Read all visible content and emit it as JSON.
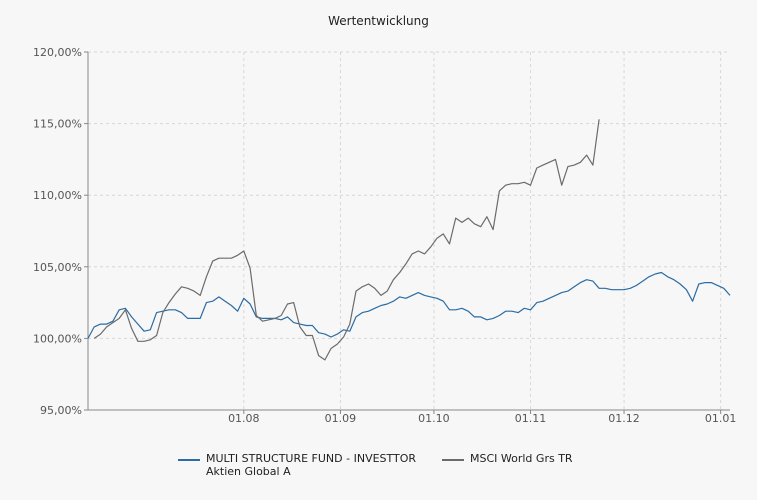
{
  "chart_data": {
    "type": "line",
    "title": "Wertentwicklung",
    "xlabel": "",
    "ylabel": "",
    "y_tick_labels": [
      "95,00%",
      "100,00%",
      "105,00%",
      "110,00%",
      "115,00%",
      "120,00%"
    ],
    "y_ticks": [
      95,
      100,
      105,
      110,
      115,
      120
    ],
    "ylim": [
      95,
      120
    ],
    "x_tick_labels": [
      "01.08",
      "01.09",
      "01.10",
      "01.11",
      "01.12",
      "01.01"
    ],
    "x_ticks": [
      31,
      62,
      92,
      123,
      153,
      184
    ],
    "xlim": [
      -19,
      187
    ],
    "grid": true,
    "legend_position": "bottom",
    "series": [
      {
        "name": "MULTI STRUCTURE FUND - INVESTTOR Aktien Global A",
        "color": "#2b6ca3",
        "x": [
          -19,
          -17,
          -15,
          -13,
          -11,
          -9,
          -7,
          -5,
          -3,
          -1,
          1,
          3,
          5,
          7,
          9,
          11,
          13,
          15,
          17,
          19,
          21,
          23,
          25,
          27,
          29,
          31,
          33,
          35,
          37,
          39,
          41,
          43,
          45,
          47,
          49,
          51,
          53,
          55,
          57,
          59,
          61,
          63,
          65,
          67,
          69,
          71,
          73,
          75,
          77,
          79,
          81,
          83,
          85,
          87,
          89,
          91,
          93,
          95,
          97,
          99,
          101,
          103,
          105,
          107,
          109,
          111,
          113,
          115,
          117,
          119,
          121,
          123,
          125,
          127,
          129,
          131,
          133,
          135,
          137,
          139,
          141,
          143,
          145,
          147,
          149,
          151,
          153,
          155,
          157,
          159,
          161,
          163,
          165,
          167,
          169,
          171,
          173,
          175,
          177,
          179,
          181,
          183,
          185,
          187
        ],
        "y": [
          100.0,
          100.8,
          101.0,
          101.0,
          101.2,
          102.0,
          102.1,
          101.5,
          101.0,
          100.5,
          100.6,
          101.8,
          101.9,
          102.0,
          102.0,
          101.8,
          101.4,
          101.4,
          101.4,
          102.5,
          102.6,
          102.9,
          102.6,
          102.3,
          101.9,
          102.8,
          102.4,
          101.5,
          101.4,
          101.4,
          101.4,
          101.3,
          101.5,
          101.1,
          101.0,
          100.9,
          100.9,
          100.4,
          100.3,
          100.1,
          100.3,
          100.6,
          100.5,
          101.5,
          101.8,
          101.9,
          102.1,
          102.3,
          102.4,
          102.6,
          102.9,
          102.8,
          103.0,
          103.2,
          103.0,
          102.9,
          102.8,
          102.6,
          102.0,
          102.0,
          102.1,
          101.9,
          101.5,
          101.5,
          101.3,
          101.4,
          101.6,
          101.9,
          101.9,
          101.8,
          102.1,
          102.0,
          102.5,
          102.6,
          102.8,
          103.0,
          103.2,
          103.3,
          103.6,
          103.9,
          104.1,
          104.0,
          103.5,
          103.5,
          103.4,
          103.4,
          103.4,
          103.5,
          103.7,
          104.0,
          104.3,
          104.5,
          104.6,
          104.3,
          104.1,
          103.8,
          103.4,
          102.6,
          103.8,
          103.9,
          103.9,
          103.7,
          103.5,
          103.0
        ]
      },
      {
        "name": "MSCI World Grs TR",
        "color": "#6b6b6b",
        "x": [
          -17,
          -15,
          -13,
          -11,
          -9,
          -7,
          -5,
          -3,
          -1,
          1,
          3,
          5,
          7,
          9,
          11,
          13,
          15,
          17,
          19,
          21,
          23,
          25,
          27,
          29,
          31,
          33,
          35,
          37,
          39,
          41,
          43,
          45,
          47,
          49,
          51,
          53,
          55,
          57,
          59,
          61,
          63,
          65,
          67,
          69,
          71,
          73,
          75,
          77,
          79,
          81,
          83,
          85,
          87,
          89,
          91,
          93,
          95,
          97,
          99,
          101,
          103,
          105,
          107,
          109,
          111,
          113,
          115,
          117,
          119,
          121,
          123,
          125,
          127,
          129,
          131,
          133,
          135,
          137,
          139,
          141,
          143,
          145
        ],
        "y": [
          100.0,
          100.3,
          100.8,
          101.1,
          101.4,
          102.0,
          100.7,
          99.8,
          99.8,
          99.9,
          100.2,
          101.8,
          102.5,
          103.1,
          103.6,
          103.5,
          103.3,
          103.0,
          104.3,
          105.4,
          105.6,
          105.6,
          105.6,
          105.8,
          106.1,
          104.9,
          101.6,
          101.2,
          101.3,
          101.4,
          101.6,
          102.4,
          102.5,
          100.8,
          100.2,
          100.2,
          98.8,
          98.5,
          99.3,
          99.6,
          100.1,
          101.0,
          103.3,
          103.6,
          103.8,
          103.5,
          103.0,
          103.3,
          104.1,
          104.6,
          105.2,
          105.9,
          106.1,
          105.9,
          106.4,
          107.0,
          107.3,
          106.6,
          108.4,
          108.1,
          108.4,
          108.0,
          107.8,
          108.5,
          107.6,
          110.3,
          110.7,
          110.8,
          110.8,
          110.9,
          110.7,
          111.9,
          112.1,
          112.3,
          112.5,
          110.7,
          112.0,
          112.1,
          112.3,
          112.8,
          112.1,
          115.3
        ]
      }
    ]
  }
}
